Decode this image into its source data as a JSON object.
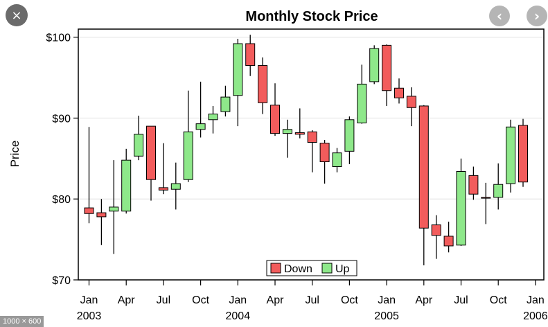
{
  "viewer": {
    "close_icon": "×",
    "prev_icon": "‹",
    "next_icon": "›",
    "size_label": "1000 × 600"
  },
  "colors": {
    "down": "#f25c5c",
    "up": "#8ee88a",
    "axis": "#000000",
    "grid": "#e6e6e6",
    "wick": "#000000"
  },
  "chart_data": {
    "type": "candlestick",
    "title": "Monthly Stock Price",
    "xlabel": "",
    "ylabel": "Price",
    "ylim": [
      70,
      101
    ],
    "yticks": [
      70,
      80,
      90,
      100
    ],
    "ytick_labels": [
      "$70",
      "$80",
      "$90",
      "$100"
    ],
    "xticks": [
      {
        "m": 0,
        "label": "Jan",
        "year": "2003"
      },
      {
        "m": 3,
        "label": "Apr",
        "year": ""
      },
      {
        "m": 6,
        "label": "Jul",
        "year": ""
      },
      {
        "m": 9,
        "label": "Oct",
        "year": ""
      },
      {
        "m": 12,
        "label": "Jan",
        "year": "2004"
      },
      {
        "m": 15,
        "label": "Apr",
        "year": ""
      },
      {
        "m": 18,
        "label": "Jul",
        "year": ""
      },
      {
        "m": 21,
        "label": "Oct",
        "year": ""
      },
      {
        "m": 24,
        "label": "Jan",
        "year": "2005"
      },
      {
        "m": 27,
        "label": "Apr",
        "year": ""
      },
      {
        "m": 30,
        "label": "Jul",
        "year": ""
      },
      {
        "m": 33,
        "label": "Oct",
        "year": ""
      },
      {
        "m": 36,
        "label": "Jan",
        "year": "2006"
      }
    ],
    "grid": true,
    "legend": {
      "position": "bottom-center",
      "entries": [
        "Down",
        "Up"
      ]
    },
    "candles": [
      {
        "month": "2003-01",
        "open": 78.9,
        "close": 78.2,
        "high": 88.9,
        "low": 77.0
      },
      {
        "month": "2003-02",
        "open": 78.3,
        "close": 77.8,
        "high": 80.0,
        "low": 74.3
      },
      {
        "month": "2003-03",
        "open": 78.5,
        "close": 79.0,
        "high": 84.8,
        "low": 73.2
      },
      {
        "month": "2003-04",
        "open": 78.5,
        "close": 84.8,
        "high": 86.2,
        "low": 78.2
      },
      {
        "month": "2003-05",
        "open": 85.3,
        "close": 88.0,
        "high": 90.3,
        "low": 84.8
      },
      {
        "month": "2003-06",
        "open": 89.0,
        "close": 82.4,
        "high": 89.0,
        "low": 79.8
      },
      {
        "month": "2003-07",
        "open": 81.4,
        "close": 81.1,
        "high": 86.9,
        "low": 80.6
      },
      {
        "month": "2003-08",
        "open": 81.2,
        "close": 81.9,
        "high": 84.5,
        "low": 78.7
      },
      {
        "month": "2003-09",
        "open": 82.4,
        "close": 88.3,
        "high": 93.4,
        "low": 82.1
      },
      {
        "month": "2003-10",
        "open": 88.6,
        "close": 89.3,
        "high": 94.5,
        "low": 87.6
      },
      {
        "month": "2003-11",
        "open": 89.8,
        "close": 90.5,
        "high": 91.5,
        "low": 88.1
      },
      {
        "month": "2003-12",
        "open": 90.8,
        "close": 92.6,
        "high": 94.0,
        "low": 90.2
      },
      {
        "month": "2004-01",
        "open": 92.8,
        "close": 99.2,
        "high": 99.8,
        "low": 89.0
      },
      {
        "month": "2004-02",
        "open": 99.2,
        "close": 96.5,
        "high": 100.3,
        "low": 95.2
      },
      {
        "month": "2004-03",
        "open": 96.5,
        "close": 91.9,
        "high": 97.5,
        "low": 90.5
      },
      {
        "month": "2004-04",
        "open": 91.6,
        "close": 88.1,
        "high": 94.3,
        "low": 87.8
      },
      {
        "month": "2004-05",
        "open": 88.1,
        "close": 88.6,
        "high": 89.8,
        "low": 85.1
      },
      {
        "month": "2004-06",
        "open": 88.2,
        "close": 88.0,
        "high": 91.2,
        "low": 87.5
      },
      {
        "month": "2004-07",
        "open": 88.3,
        "close": 87.0,
        "high": 88.5,
        "low": 83.3
      },
      {
        "month": "2004-08",
        "open": 86.9,
        "close": 84.6,
        "high": 87.3,
        "low": 81.9
      },
      {
        "month": "2004-09",
        "open": 84.0,
        "close": 85.7,
        "high": 86.3,
        "low": 83.3
      },
      {
        "month": "2004-10",
        "open": 85.9,
        "close": 89.8,
        "high": 90.2,
        "low": 84.3
      },
      {
        "month": "2004-11",
        "open": 89.4,
        "close": 94.2,
        "high": 96.6,
        "low": 89.3
      },
      {
        "month": "2004-12",
        "open": 94.5,
        "close": 98.6,
        "high": 99.0,
        "low": 94.2
      },
      {
        "month": "2005-01",
        "open": 99.0,
        "close": 93.4,
        "high": 99.1,
        "low": 91.5
      },
      {
        "month": "2005-02",
        "open": 93.7,
        "close": 92.5,
        "high": 94.9,
        "low": 91.8
      },
      {
        "month": "2005-03",
        "open": 92.7,
        "close": 91.3,
        "high": 93.8,
        "low": 89.0
      },
      {
        "month": "2005-04",
        "open": 91.5,
        "close": 76.4,
        "high": 91.6,
        "low": 71.8
      },
      {
        "month": "2005-05",
        "open": 76.8,
        "close": 75.5,
        "high": 78.0,
        "low": 72.6
      },
      {
        "month": "2005-06",
        "open": 75.4,
        "close": 74.2,
        "high": 77.2,
        "low": 73.4
      },
      {
        "month": "2005-07",
        "open": 74.3,
        "close": 83.4,
        "high": 85.0,
        "low": 74.2
      },
      {
        "month": "2005-08",
        "open": 82.9,
        "close": 80.6,
        "high": 84.0,
        "low": 79.9
      },
      {
        "month": "2005-09",
        "open": 80.2,
        "close": 80.1,
        "high": 82.0,
        "low": 76.9
      },
      {
        "month": "2005-10",
        "open": 80.2,
        "close": 81.8,
        "high": 84.4,
        "low": 78.7
      },
      {
        "month": "2005-11",
        "open": 81.9,
        "close": 88.9,
        "high": 89.8,
        "low": 80.8
      },
      {
        "month": "2005-12",
        "open": 89.1,
        "close": 82.1,
        "high": 89.9,
        "low": 81.5
      }
    ]
  }
}
